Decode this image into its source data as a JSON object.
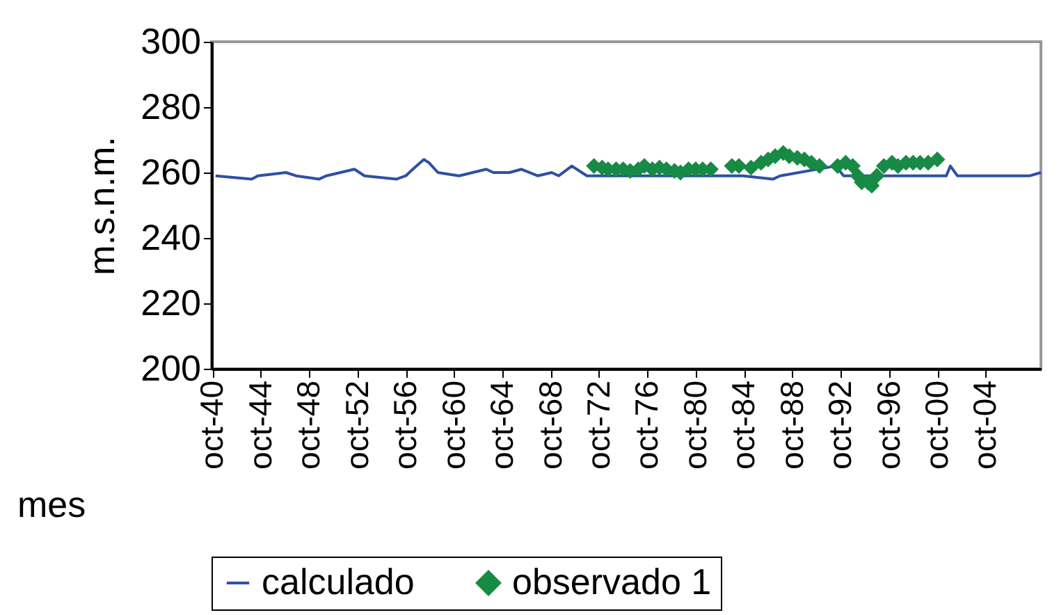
{
  "chart_data": {
    "type": "line",
    "xlabel": "mes",
    "ylabel": "m.s.n.m.",
    "ylim": [
      200,
      300
    ],
    "yticks": [
      200,
      220,
      240,
      260,
      280,
      300
    ],
    "xlim": [
      "1940-09",
      "2009-05"
    ],
    "xticks": [
      {
        "value": "1940-10",
        "label": "oct-40"
      },
      {
        "value": "1944-10",
        "label": "oct-44"
      },
      {
        "value": "1948-10",
        "label": "oct-48"
      },
      {
        "value": "1952-10",
        "label": "oct-52"
      },
      {
        "value": "1956-10",
        "label": "oct-56"
      },
      {
        "value": "1960-10",
        "label": "oct-60"
      },
      {
        "value": "1964-10",
        "label": "oct-64"
      },
      {
        "value": "1968-10",
        "label": "oct-68"
      },
      {
        "value": "1972-10",
        "label": "oct-72"
      },
      {
        "value": "1976-10",
        "label": "oct-76"
      },
      {
        "value": "1980-10",
        "label": "oct-80"
      },
      {
        "value": "1984-10",
        "label": "oct-84"
      },
      {
        "value": "1988-10",
        "label": "oct-88"
      },
      {
        "value": "1992-10",
        "label": "oct-92"
      },
      {
        "value": "1996-10",
        "label": "oct-96"
      },
      {
        "value": "2000-10",
        "label": "oct-00"
      },
      {
        "value": "2004-10",
        "label": "oct-04"
      }
    ],
    "legend": "bottom",
    "grid": false,
    "series": [
      {
        "name": "calculado",
        "marker": "none",
        "color": "#2f4fa6",
        "x": [
          "1941-01",
          "1944-01",
          "1944-07",
          "1946-11",
          "1947-09",
          "1949-08",
          "1950-03",
          "1952-07",
          "1953-05",
          "1956-01",
          "1956-10",
          "1957-05",
          "1958-04",
          "1958-09",
          "1959-06",
          "1961-03",
          "1963-06",
          "1964-01",
          "1965-05",
          "1966-05",
          "1967-09",
          "1968-11",
          "1969-06",
          "1970-07",
          "1971-10",
          "1984-09",
          "1987-03",
          "1987-10",
          "1992-05",
          "1993-01",
          "2001-07",
          "2001-11",
          "2002-06",
          "2008-06",
          "2009-05"
        ],
        "values": [
          259,
          258,
          259,
          260,
          259,
          258,
          259,
          261,
          259,
          258,
          259,
          261,
          264,
          263,
          260,
          259,
          261,
          260,
          260,
          261,
          259,
          260,
          259,
          262,
          259,
          259,
          258,
          259,
          262,
          259,
          259,
          262,
          259,
          259,
          260
        ]
      },
      {
        "name": "observado 1",
        "type": "scatter",
        "marker": "diamond",
        "color": "#178a45",
        "x": [
          "1972-05",
          "1973-01",
          "1973-07",
          "1974-03",
          "1974-10",
          "1975-05",
          "1976-01",
          "1976-07",
          "1977-03",
          "1977-10",
          "1978-05",
          "1979-01",
          "1979-07",
          "1980-03",
          "1980-10",
          "1981-05",
          "1982-01",
          "1983-10",
          "1984-05",
          "1985-05",
          "1986-03",
          "1986-10",
          "1987-05",
          "1988-01",
          "1988-07",
          "1989-03",
          "1989-10",
          "1990-05",
          "1991-01",
          "1992-07",
          "1993-03",
          "1993-10",
          "1994-03",
          "1994-07",
          "1995-01",
          "1995-05",
          "1995-10",
          "1996-05",
          "1997-01",
          "1997-07",
          "1998-03",
          "1998-10",
          "1999-05",
          "2000-01",
          "2000-10"
        ],
        "values": [
          262,
          261.5,
          261,
          261,
          261,
          260.5,
          261,
          262,
          261,
          261.5,
          261,
          260.5,
          260,
          261,
          261,
          261,
          261,
          262,
          262,
          261.5,
          263,
          264,
          265,
          266,
          265,
          264.5,
          264,
          263,
          262,
          262,
          263,
          262,
          259,
          257,
          257,
          256,
          259,
          262,
          263,
          262,
          263,
          263,
          263,
          263,
          264
        ]
      }
    ]
  }
}
